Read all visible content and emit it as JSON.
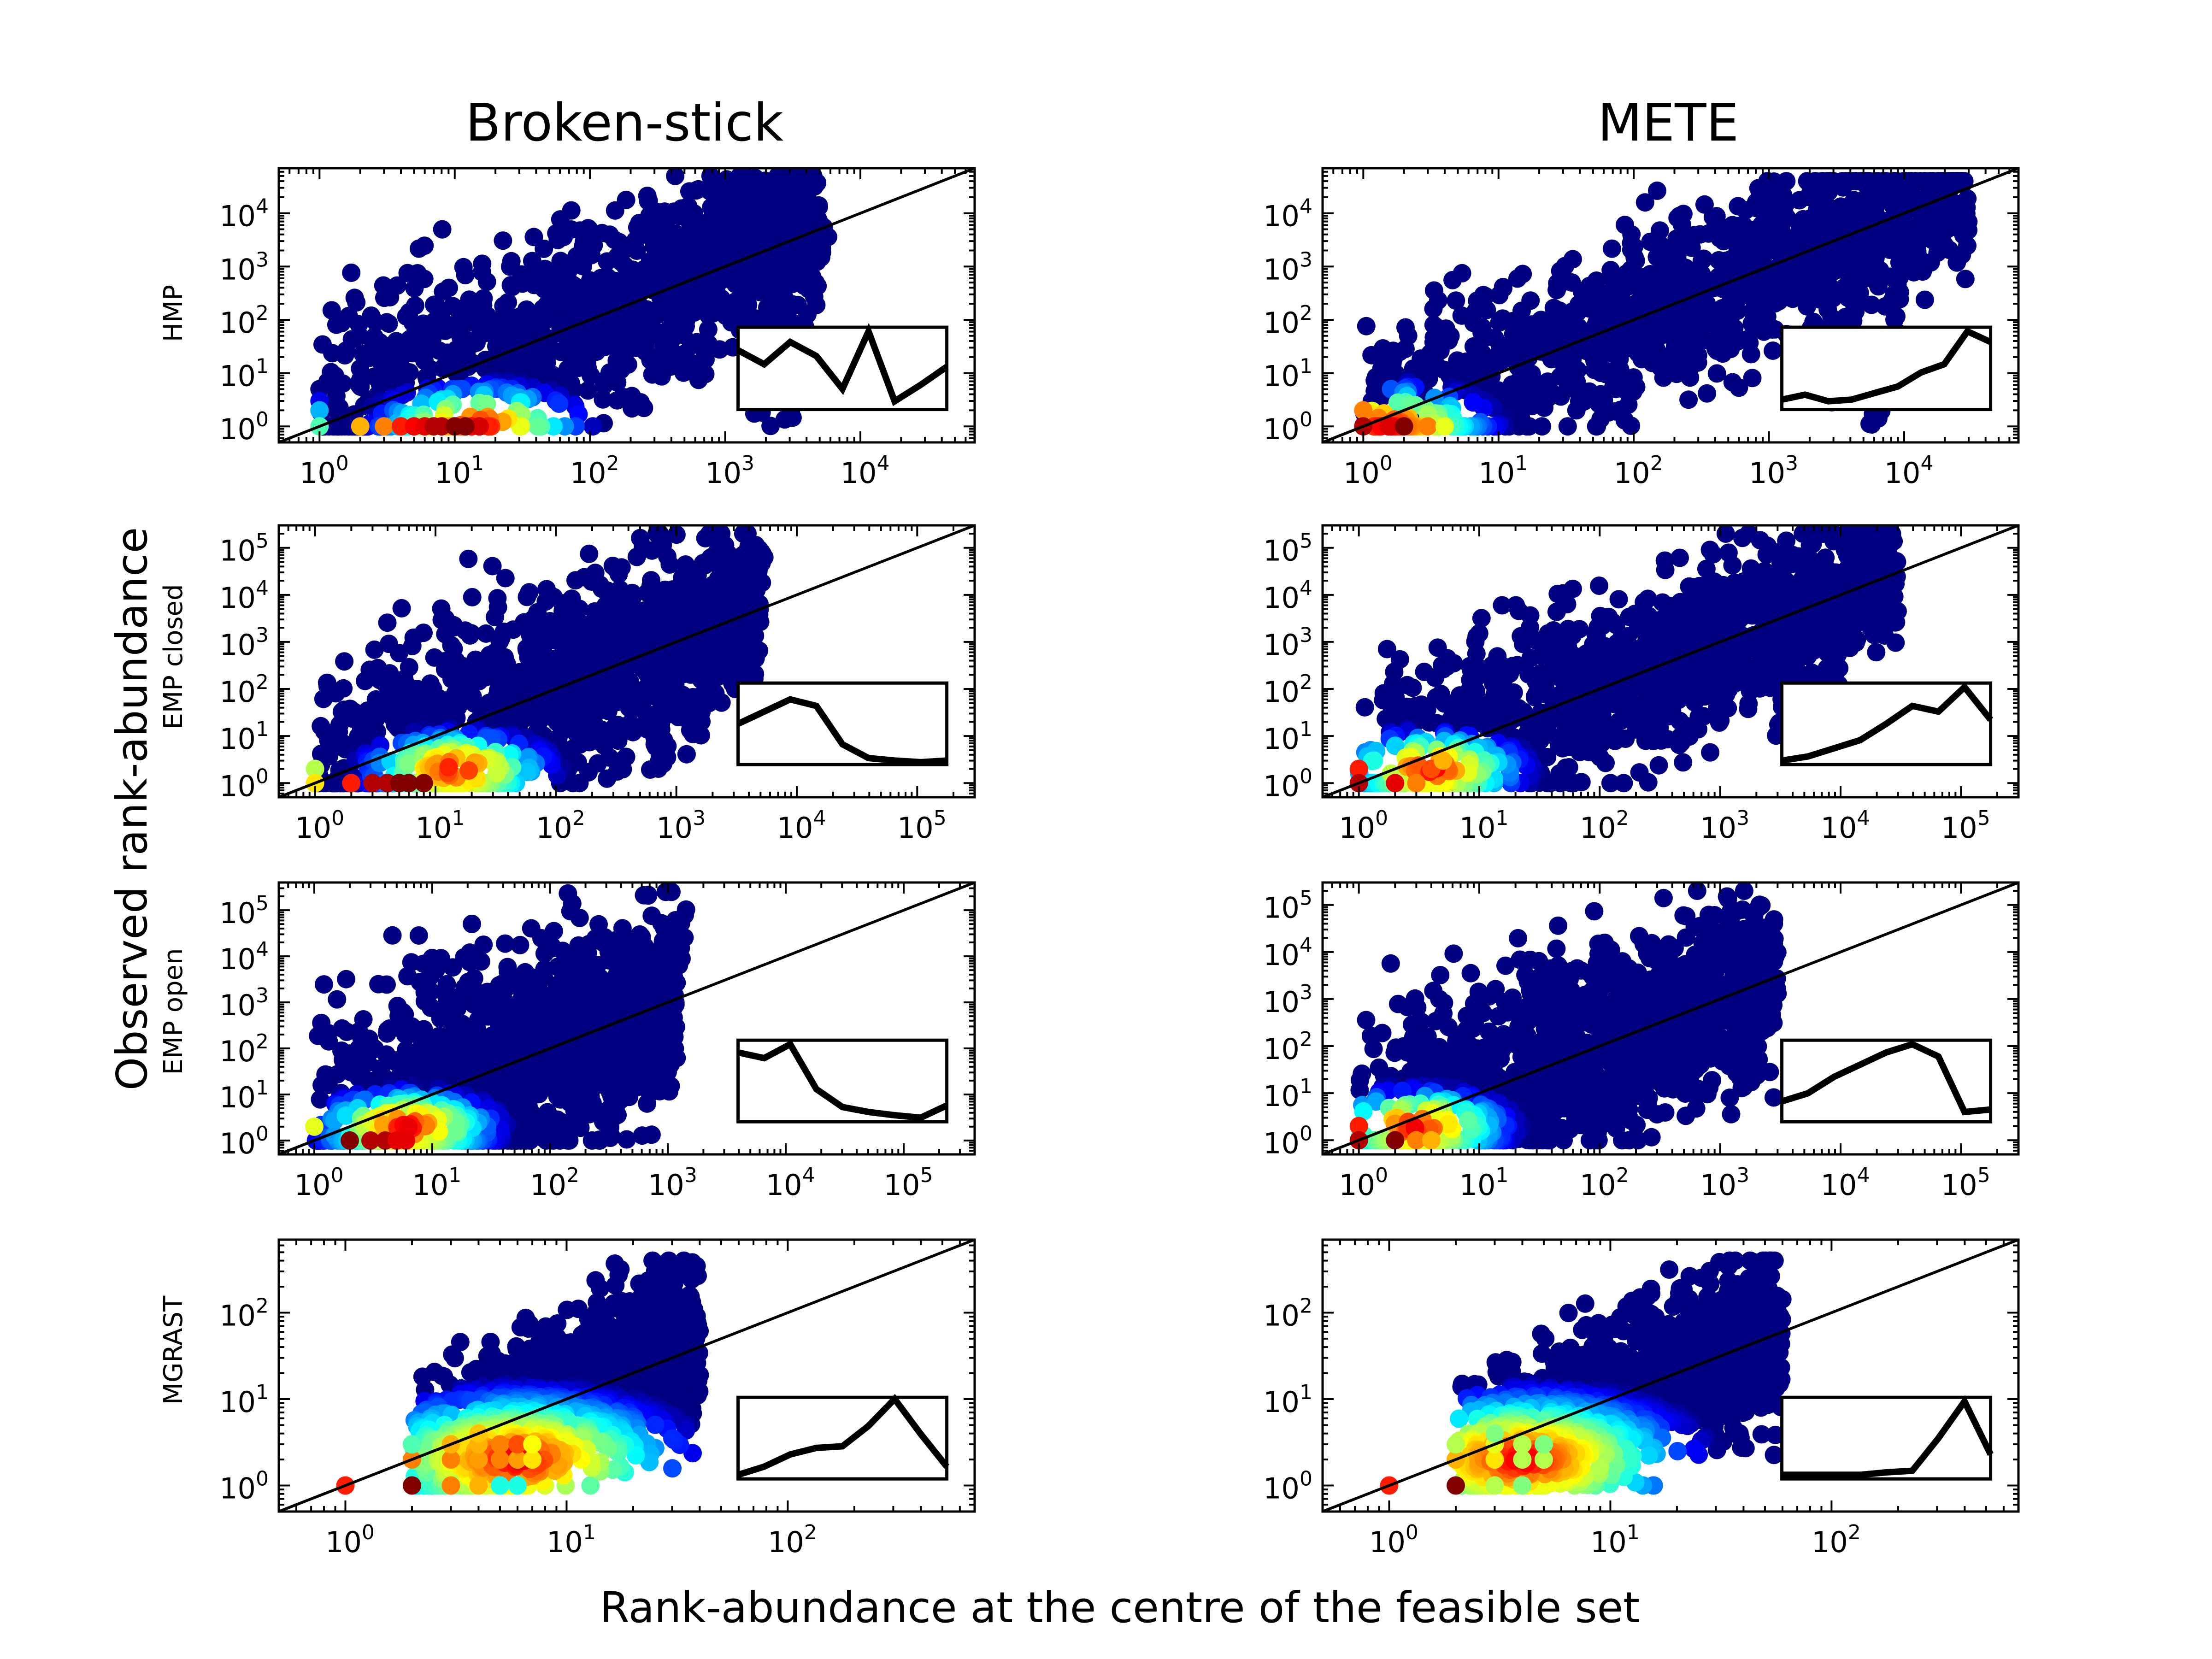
{
  "figure": {
    "column_titles": [
      "Broken-stick",
      "METE"
    ],
    "row_labels": [
      "HMP",
      "EMP closed",
      "EMP open",
      "MGRAST"
    ],
    "x_axis_label": "Rank-abundance at the centre of the feasible set",
    "y_axis_label": "Observed rank-abundance"
  },
  "colors": {
    "colormap": "jet",
    "colormap_stops": [
      "#00007f",
      "#0000ff",
      "#007fff",
      "#00ffff",
      "#7fff7f",
      "#ffff00",
      "#ff7f00",
      "#ff0000",
      "#7f0000"
    ],
    "one_to_one_line": "#000000",
    "inset_line": "#000000"
  },
  "chart_data": [
    {
      "type": "scatter",
      "model": "Broken-stick",
      "dataset": "HMP",
      "scale": "log",
      "xlim": [
        0.5,
        70000
      ],
      "ylim": [
        0.5,
        70000
      ],
      "x_ticks": [
        "10^0",
        "10^1",
        "10^2",
        "10^3",
        "10^4"
      ],
      "y_ticks": [
        "10^0",
        "10^1",
        "10^2",
        "10^3",
        "10^4"
      ],
      "one_to_one_line": true,
      "point_cloud": {
        "x_range": [
          1,
          5000
        ],
        "y_min": 1,
        "y_max": 50000,
        "spread_low_decades": 2.6,
        "spread_high_decades": 1.6,
        "densest_point": [
          15,
          1
        ],
        "outlier_streaks": [
          [
            1800,
            1,
            30000
          ],
          [
            3000,
            1,
            8000
          ]
        ]
      },
      "low_rank_points": [
        [
          1,
          5,
          0.0
        ],
        [
          1,
          3,
          0.1
        ],
        [
          1,
          2,
          0.3
        ],
        [
          1,
          1,
          0.45
        ],
        [
          2,
          1,
          0.7
        ],
        [
          3,
          1,
          0.75
        ],
        [
          4,
          1,
          0.85
        ],
        [
          5,
          1,
          0.88
        ],
        [
          6,
          1,
          0.9
        ],
        [
          7,
          1,
          0.95
        ],
        [
          8,
          1,
          0.95
        ],
        [
          10,
          1,
          1.0
        ],
        [
          12,
          1,
          1.0
        ]
      ],
      "inset_curve": [
        0.72,
        0.55,
        0.82,
        0.65,
        0.25,
        0.95,
        0.1,
        0.3,
        0.52
      ]
    },
    {
      "type": "scatter",
      "model": "METE",
      "dataset": "HMP",
      "scale": "log",
      "xlim": [
        0.5,
        70000
      ],
      "ylim": [
        0.5,
        70000
      ],
      "x_ticks": [
        "10^0",
        "10^1",
        "10^2",
        "10^3",
        "10^4"
      ],
      "y_ticks": [
        "10^0",
        "10^1",
        "10^2",
        "10^3",
        "10^4"
      ],
      "one_to_one_line": true,
      "point_cloud": {
        "x_range": [
          1,
          30000
        ],
        "y_min": 1,
        "y_max": 40000,
        "spread_low_decades": 2.0,
        "spread_high_decades": 1.6,
        "densest_point": [
          1.5,
          1
        ],
        "outlier_streaks": [
          [
            1,
            1,
            30
          ],
          [
            2,
            1,
            30
          ],
          [
            3000,
            1,
            5000
          ],
          [
            6000,
            1,
            4000
          ]
        ]
      },
      "low_rank_points": [
        [
          1,
          2,
          0.75
        ],
        [
          1,
          1,
          0.95
        ],
        [
          2,
          1,
          1.0
        ],
        [
          3,
          1,
          0.75
        ],
        [
          4,
          1,
          0.6
        ]
      ],
      "inset_curve": [
        0.12,
        0.18,
        0.1,
        0.12,
        0.2,
        0.28,
        0.45,
        0.55,
        0.95,
        0.82
      ]
    },
    {
      "type": "scatter",
      "model": "Broken-stick",
      "dataset": "EMP closed",
      "scale": "log",
      "xlim": [
        0.5,
        300000
      ],
      "ylim": [
        0.5,
        300000
      ],
      "x_ticks": [
        "10^0",
        "10^1",
        "10^2",
        "10^3",
        "10^4",
        "10^5"
      ],
      "y_ticks": [
        "10^0",
        "10^1",
        "10^2",
        "10^3",
        "10^4",
        "10^5"
      ],
      "one_to_one_line": true,
      "point_cloud": {
        "x_range": [
          1,
          5000
        ],
        "y_min": 1,
        "y_max": 200000,
        "spread_low_decades": 3.0,
        "spread_high_decades": 2.0,
        "densest_point": [
          15,
          2
        ],
        "outlier_streaks": [
          [
            700,
            1,
            30000
          ],
          [
            1500,
            10,
            100000
          ],
          [
            3000,
            100,
            200000
          ]
        ]
      },
      "low_rank_points": [
        [
          1,
          2,
          0.55
        ],
        [
          1,
          1,
          0.65
        ],
        [
          2,
          1,
          0.85
        ],
        [
          3,
          1,
          0.95
        ],
        [
          4,
          1,
          0.95
        ],
        [
          5,
          1,
          1.0
        ],
        [
          6,
          1,
          1.0
        ],
        [
          8,
          1,
          1.0
        ]
      ],
      "inset_curve": [
        0.5,
        0.65,
        0.8,
        0.72,
        0.25,
        0.08,
        0.05,
        0.03,
        0.05
      ]
    },
    {
      "type": "scatter",
      "model": "METE",
      "dataset": "EMP closed",
      "scale": "log",
      "xlim": [
        0.5,
        300000
      ],
      "ylim": [
        0.5,
        300000
      ],
      "x_ticks": [
        "10^0",
        "10^1",
        "10^2",
        "10^3",
        "10^4",
        "10^5"
      ],
      "y_ticks": [
        "10^0",
        "10^1",
        "10^2",
        "10^3",
        "10^4",
        "10^5"
      ],
      "one_to_one_line": true,
      "point_cloud": {
        "x_range": [
          1,
          30000
        ],
        "y_min": 1,
        "y_max": 200000,
        "spread_low_decades": 2.6,
        "spread_high_decades": 1.6,
        "densest_point": [
          4,
          2
        ],
        "outlier_streaks": [
          [
            3000,
            10,
            80000
          ],
          [
            8000,
            100,
            150000
          ]
        ]
      },
      "low_rank_points": [
        [
          1,
          2,
          0.85
        ],
        [
          1,
          1,
          0.95
        ],
        [
          2,
          1,
          0.9
        ],
        [
          3,
          1,
          0.75
        ],
        [
          4,
          2,
          0.8
        ],
        [
          5,
          3,
          0.7
        ]
      ],
      "inset_curve": [
        0.05,
        0.1,
        0.2,
        0.3,
        0.5,
        0.72,
        0.65,
        0.95,
        0.55
      ]
    },
    {
      "type": "scatter",
      "model": "Broken-stick",
      "dataset": "EMP open",
      "scale": "log",
      "xlim": [
        0.5,
        400000
      ],
      "ylim": [
        0.5,
        400000
      ],
      "x_ticks": [
        "10^0",
        "10^1",
        "10^2",
        "10^3",
        "10^4",
        "10^5"
      ],
      "y_ticks": [
        "10^0",
        "10^1",
        "10^2",
        "10^3",
        "10^4",
        "10^5"
      ],
      "one_to_one_line": true,
      "point_cloud": {
        "x_range": [
          1,
          1200
        ],
        "y_min": 1,
        "y_max": 250000,
        "spread_low_decades": 3.6,
        "spread_high_decades": 2.3,
        "densest_point": [
          6,
          2
        ],
        "outlier_streaks": [
          [
            300,
            1,
            30000
          ],
          [
            800,
            10,
            200000
          ]
        ]
      },
      "low_rank_points": [
        [
          1,
          2,
          0.6
        ],
        [
          2,
          1,
          1.0
        ],
        [
          3,
          1,
          0.95
        ],
        [
          4,
          1,
          0.95
        ],
        [
          5,
          1,
          0.9
        ],
        [
          6,
          1,
          0.9
        ]
      ],
      "inset_curve": [
        0.85,
        0.78,
        0.95,
        0.4,
        0.18,
        0.12,
        0.08,
        0.05,
        0.2
      ]
    },
    {
      "type": "scatter",
      "model": "METE",
      "dataset": "EMP open",
      "scale": "log",
      "xlim": [
        0.5,
        300000
      ],
      "ylim": [
        0.5,
        300000
      ],
      "x_ticks": [
        "10^0",
        "10^1",
        "10^2",
        "10^3",
        "10^4",
        "10^5"
      ],
      "y_ticks": [
        "10^0",
        "10^1",
        "10^2",
        "10^3",
        "10^4",
        "10^5"
      ],
      "one_to_one_line": true,
      "point_cloud": {
        "x_range": [
          1,
          3000
        ],
        "y_min": 1,
        "y_max": 200000,
        "spread_low_decades": 3.0,
        "spread_high_decades": 2.0,
        "densest_point": [
          3,
          2
        ],
        "outlier_streaks": [
          [
            1500,
            10,
            100000
          ]
        ]
      },
      "low_rank_points": [
        [
          1,
          2,
          0.85
        ],
        [
          1,
          1,
          0.95
        ],
        [
          2,
          1,
          1.0
        ],
        [
          3,
          1,
          0.75
        ],
        [
          4,
          1,
          0.7
        ]
      ],
      "inset_curve": [
        0.25,
        0.35,
        0.55,
        0.7,
        0.85,
        0.95,
        0.8,
        0.12,
        0.15
      ]
    },
    {
      "type": "scatter",
      "model": "Broken-stick",
      "dataset": "MGRAST",
      "scale": "log",
      "xlim": [
        0.5,
        700
      ],
      "ylim": [
        0.5,
        700
      ],
      "x_ticks": [
        "10^0",
        "10^1",
        "10^2"
      ],
      "y_ticks": [
        "10^0",
        "10^1",
        "10^2"
      ],
      "one_to_one_line": true,
      "point_cloud": {
        "x_range": [
          2,
          40
        ],
        "y_min": 1,
        "y_max": 400,
        "spread_low_decades": 0.9,
        "spread_high_decades": 1.2,
        "densest_point": [
          6,
          2
        ],
        "outlier_streaks": []
      },
      "low_rank_points": [
        [
          1,
          1,
          0.85
        ],
        [
          2,
          1,
          1.0
        ],
        [
          2,
          2,
          0.75
        ],
        [
          2,
          3,
          0.45
        ],
        [
          3,
          1,
          0.75
        ],
        [
          3,
          2,
          0.75
        ],
        [
          3,
          3,
          0.7
        ],
        [
          4,
          1,
          0.7
        ],
        [
          4,
          2,
          0.72
        ],
        [
          4,
          3,
          0.7
        ],
        [
          4,
          4,
          0.68
        ],
        [
          5,
          1,
          0.4
        ],
        [
          5,
          2,
          0.75
        ],
        [
          5,
          3,
          0.75
        ],
        [
          6,
          1,
          0.4
        ],
        [
          6,
          2,
          0.72
        ],
        [
          6,
          3,
          0.8
        ],
        [
          7,
          2,
          0.65
        ],
        [
          7,
          3,
          0.62
        ]
      ],
      "inset_curve": [
        0.05,
        0.15,
        0.3,
        0.38,
        0.4,
        0.65,
        0.98,
        0.55,
        0.15
      ]
    },
    {
      "type": "scatter",
      "model": "METE",
      "dataset": "MGRAST",
      "scale": "log",
      "xlim": [
        0.5,
        700
      ],
      "ylim": [
        0.5,
        700
      ],
      "x_ticks": [
        "10^0",
        "10^1",
        "10^2"
      ],
      "y_ticks": [
        "10^0",
        "10^1",
        "10^2"
      ],
      "one_to_one_line": true,
      "point_cloud": {
        "x_range": [
          2,
          60
        ],
        "y_min": 1,
        "y_max": 400,
        "spread_low_decades": 0.9,
        "spread_high_decades": 1.2,
        "densest_point": [
          4,
          2
        ],
        "outlier_streaks": []
      },
      "low_rank_points": [
        [
          1,
          1,
          0.85
        ],
        [
          2,
          1,
          1.0
        ],
        [
          2,
          2,
          0.7
        ],
        [
          2,
          3,
          0.55
        ],
        [
          3,
          1,
          0.55
        ],
        [
          3,
          2,
          0.65
        ],
        [
          3,
          3,
          0.6
        ],
        [
          3,
          4,
          0.5
        ],
        [
          4,
          1,
          0.5
        ],
        [
          4,
          2,
          0.55
        ],
        [
          4,
          3,
          0.55
        ],
        [
          5,
          2,
          0.55
        ],
        [
          5,
          3,
          0.5
        ]
      ],
      "inset_curve": [
        0.05,
        0.05,
        0.05,
        0.05,
        0.08,
        0.1,
        0.5,
        0.95,
        0.3
      ]
    }
  ]
}
